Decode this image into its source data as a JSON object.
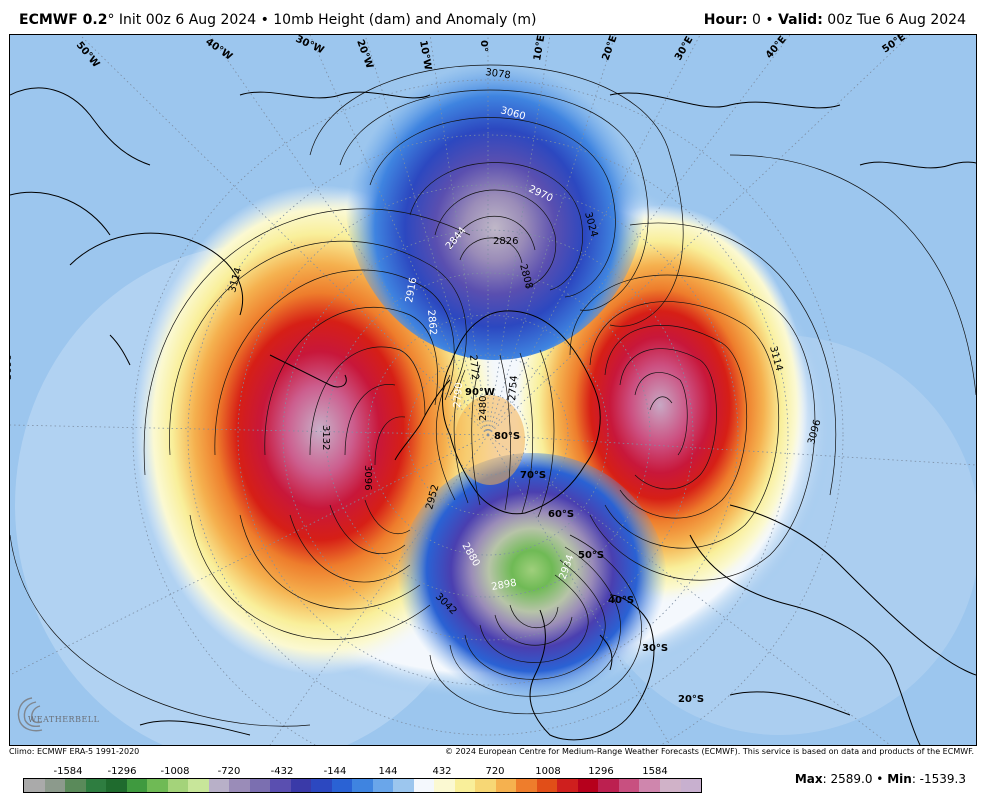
{
  "header": {
    "model": "ECMWF 0.2",
    "init_rest": "° Init 00z 6 Aug 2024 • 10mb Height (dam) and Anomaly (m)",
    "hour_label": "Hour:",
    "hour_value": " 0 • ",
    "valid_label": "Valid:",
    "valid_value": " 00z Tue 6 Aug 2024"
  },
  "footer": {
    "climo": "Climo: ECMWF ERA-5 1991-2020",
    "copyright": "© 2024 European Centre for Medium-Range Weather Forecasts (ECMWF). This service is based on data and products of the ECMWF.",
    "max_label": "Max",
    "max_value": ": 2589.0 • ",
    "min_label": "Min",
    "min_value": ": -1539.3",
    "logo_text": "WEATHERBELL"
  },
  "colorbar": {
    "labels": [
      "-1584",
      "-1296",
      "-1008",
      "-720",
      "-432",
      "-144",
      "144",
      "432",
      "720",
      "1008",
      "1296",
      "1584"
    ],
    "colors": [
      "#aaaaaa",
      "#8c9a8c",
      "#5a8a5a",
      "#2e7d40",
      "#1f6b2e",
      "#3f9a3f",
      "#6fba55",
      "#a4d37a",
      "#c8e69a",
      "#b8b0c8",
      "#9a8cb8",
      "#7b6fb0",
      "#5a4fb0",
      "#3a3aa8",
      "#2c48c0",
      "#2a62d4",
      "#3f84e0",
      "#6aa6ea",
      "#9cc6ee",
      "#f4f8fd",
      "#fbf9d2",
      "#f9ef9a",
      "#f7d775",
      "#f5b14f",
      "#ee7d2c",
      "#e14e18",
      "#cf1f1e",
      "#b6001c",
      "#bc2050",
      "#c85080",
      "#cf86ad",
      "#d0b2c8",
      "#c8b0cf"
    ]
  },
  "map": {
    "contours": [
      "3078",
      "3060",
      "2970",
      "3024",
      "2844",
      "2826",
      "2808",
      "2916",
      "2862",
      "2772",
      "2754",
      "2790",
      "2480",
      "2952",
      "2880",
      "2898",
      "2934",
      "3042",
      "3114",
      "3132",
      "3096",
      "3096",
      "3096",
      "3114"
    ],
    "longitudes": [
      "50°W",
      "40°W",
      "30°W",
      "20°W",
      "10°W",
      "0°",
      "10°E",
      "20°E",
      "30°E",
      "40°E",
      "50°E",
      "90°W"
    ],
    "latitudes": [
      "80°S",
      "70°S",
      "60°S",
      "50°S",
      "40°S",
      "30°S",
      "20°S"
    ]
  }
}
